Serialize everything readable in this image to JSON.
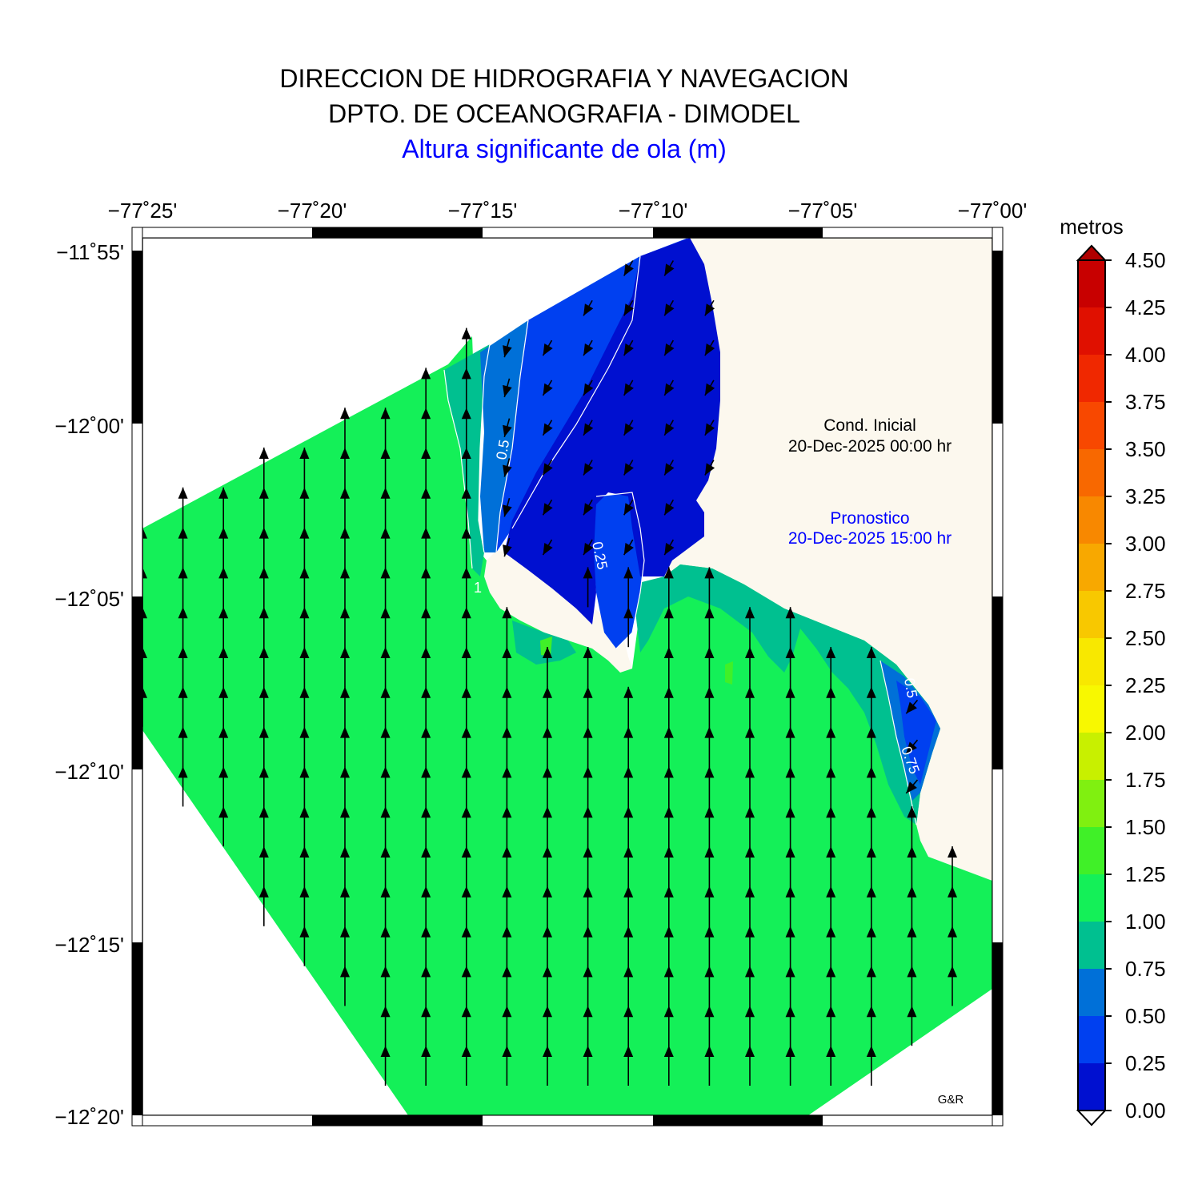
{
  "header": {
    "line1": "DIRECCION DE HIDROGRAFIA Y NAVEGACION",
    "line2": "DPTO. DE OCEANOGRAFIA - DIMODEL",
    "line3": "Altura significante de ola (m)"
  },
  "axes": {
    "lon_labels": [
      "−77˚25'",
      "−77˚20'",
      "−77˚15'",
      "−77˚10'",
      "−77˚05'",
      "−77˚00'"
    ],
    "lat_labels": [
      "−11˚55'",
      "−12˚00'",
      "−12˚05'",
      "−12˚10'",
      "−12˚15'",
      "−12˚20'"
    ]
  },
  "annotations": {
    "initial_label": "Cond. Inicial",
    "initial_date": "20-Dec-2025 00:00 hr",
    "forecast_label": "Pronostico",
    "forecast_date": "20-Dec-2025 15:00 hr",
    "credit": "G&R",
    "contour_labels": [
      "0.5",
      "0.25",
      "1",
      "0.75",
      "0.5",
      "0.75"
    ]
  },
  "colorbar": {
    "unit": "metros",
    "labels": [
      "4.50",
      "4.25",
      "4.00",
      "3.75",
      "3.50",
      "3.25",
      "3.00",
      "2.75",
      "2.50",
      "2.25",
      "2.00",
      "1.75",
      "1.50",
      "1.25",
      "1.00",
      "0.75",
      "0.50",
      "0.25",
      "0.00"
    ],
    "colors_bottom_to_top": [
      "#0010d0",
      "#0040f0",
      "#0070d8",
      "#00c090",
      "#14f058",
      "#40f028",
      "#80f010",
      "#c8f000",
      "#f8f800",
      "#f8e800",
      "#f8c800",
      "#f8a800",
      "#f88800",
      "#f86800",
      "#f84800",
      "#f02800",
      "#e01000",
      "#c80000"
    ],
    "top_arrow_color": "#b00000"
  },
  "colors": {
    "land": "#fcf8ee",
    "sea_1_00_1_25": "#14f058",
    "sea_0_75_1_00": "#00c090",
    "sea_0_50_0_75": "#0070d8",
    "sea_0_25_0_50": "#0040f0",
    "sea_0_00_0_25": "#0010d0"
  }
}
